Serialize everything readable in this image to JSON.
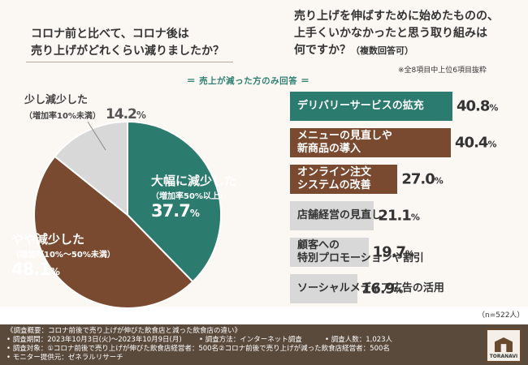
{
  "left_question": {
    "line1": "コロナ前と比べて、コロナ後は",
    "line2": "売り上げがどれくらい減りましたか？"
  },
  "right_question": {
    "line1": "売り上げを伸ばすために始めたものの、",
    "line2": "上手くいかなかったと思う取り組みは",
    "line3": "何ですか？",
    "line3_small": "（複数回答可）"
  },
  "right_note": "※全8項目中上位6項目抜粋",
  "respondents_label": "＝ 売上が減った方のみ回答 ＝",
  "n_label": "（n=522人）",
  "colors": {
    "green": "#2b7b6e",
    "brown": "#7a4a30",
    "gray": "#d8d8d8",
    "footer": "#5a4a3c"
  },
  "chart_data": [
    {
      "type": "pie",
      "slices": [
        {
          "name": "大幅に減少した",
          "sub": "（増加率50%以上）",
          "value": 37.7,
          "unit": "%"
        },
        {
          "name": "やや減少した",
          "sub": "（増加率10%〜50%未満）",
          "value": 48.1,
          "unit": "%"
        },
        {
          "name": "少し減少した",
          "sub": "（増加率10%未満）",
          "value": 14.2,
          "unit": "%"
        }
      ]
    },
    {
      "type": "bar",
      "orientation": "horizontal",
      "categories": [
        "デリバリーサービスの拡充",
        "メニューの見直しや\n新商品の導入",
        "オンライン注文\nシステムの改善",
        "店舗経営の見直し",
        "顧客への\n特別プロモーションや割引",
        "ソーシャルメディア広告の活用"
      ],
      "values": [
        40.8,
        40.4,
        27.0,
        21.1,
        19.7,
        16.9
      ],
      "unit": "%"
    }
  ],
  "footer": {
    "line1": "《調査概要：コロナ前後で売り上げが伸びた飲食店と減った飲食店の違い》",
    "line2a": "• 調査期間：2023年10月3日(火)〜2023年10月9日(月)",
    "line2b": "• 調査方法：インターネット調査",
    "line2c": "• 調査人数：1,023人",
    "line3": "• 調査対象：①コロナ前後で売り上げが伸びた飲食店経営者：500名②コロナ前後で売り上げが減った飲食店経営者：500名",
    "line4": "• モニター提供元：ゼネラルリサーチ",
    "logo_text": "TORANAVI"
  }
}
